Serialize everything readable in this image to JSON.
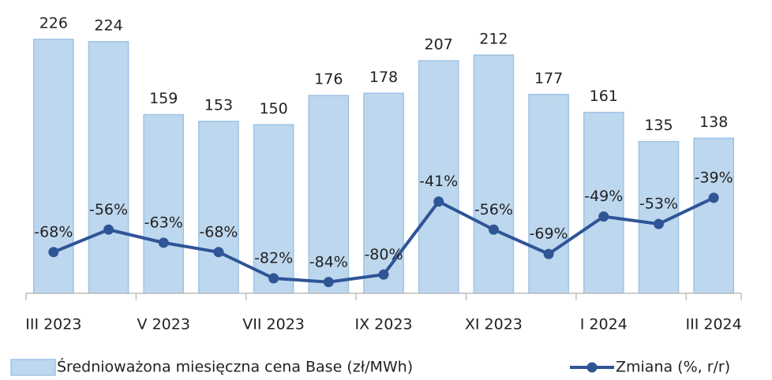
{
  "chart_data": {
    "type": "combo",
    "categories": [
      "III 2023",
      null,
      "V 2023",
      null,
      "VII 2023",
      null,
      "IX 2023",
      null,
      "XI 2023",
      null,
      "I 2024",
      null,
      "III 2024"
    ],
    "series": [
      {
        "name": "Średnioważona miesięczna cena Base (zł/MWh)",
        "type": "bar",
        "color": "#bdd7ee",
        "values": [
          226,
          224,
          159,
          153,
          150,
          176,
          178,
          207,
          212,
          177,
          161,
          135,
          138
        ]
      },
      {
        "name": "Zmiana (%, r/r)",
        "type": "line",
        "color": "#2f5597",
        "axis": "y2",
        "values": [
          -68,
          -56,
          -63,
          -68,
          -82,
          -84,
          -80,
          -41,
          -56,
          -69,
          -49,
          -53,
          -39
        ],
        "value_labels": [
          "-68%",
          "-56%",
          "-63%",
          "-68%",
          "-82%",
          "-84%",
          "-80%",
          "-41%",
          "-56%",
          "-69%",
          "-49%",
          "-53%",
          "-39%"
        ]
      }
    ],
    "ylim": [
      0,
      240
    ],
    "y2lim": [
      -90,
      54
    ],
    "legend": "bottom"
  }
}
